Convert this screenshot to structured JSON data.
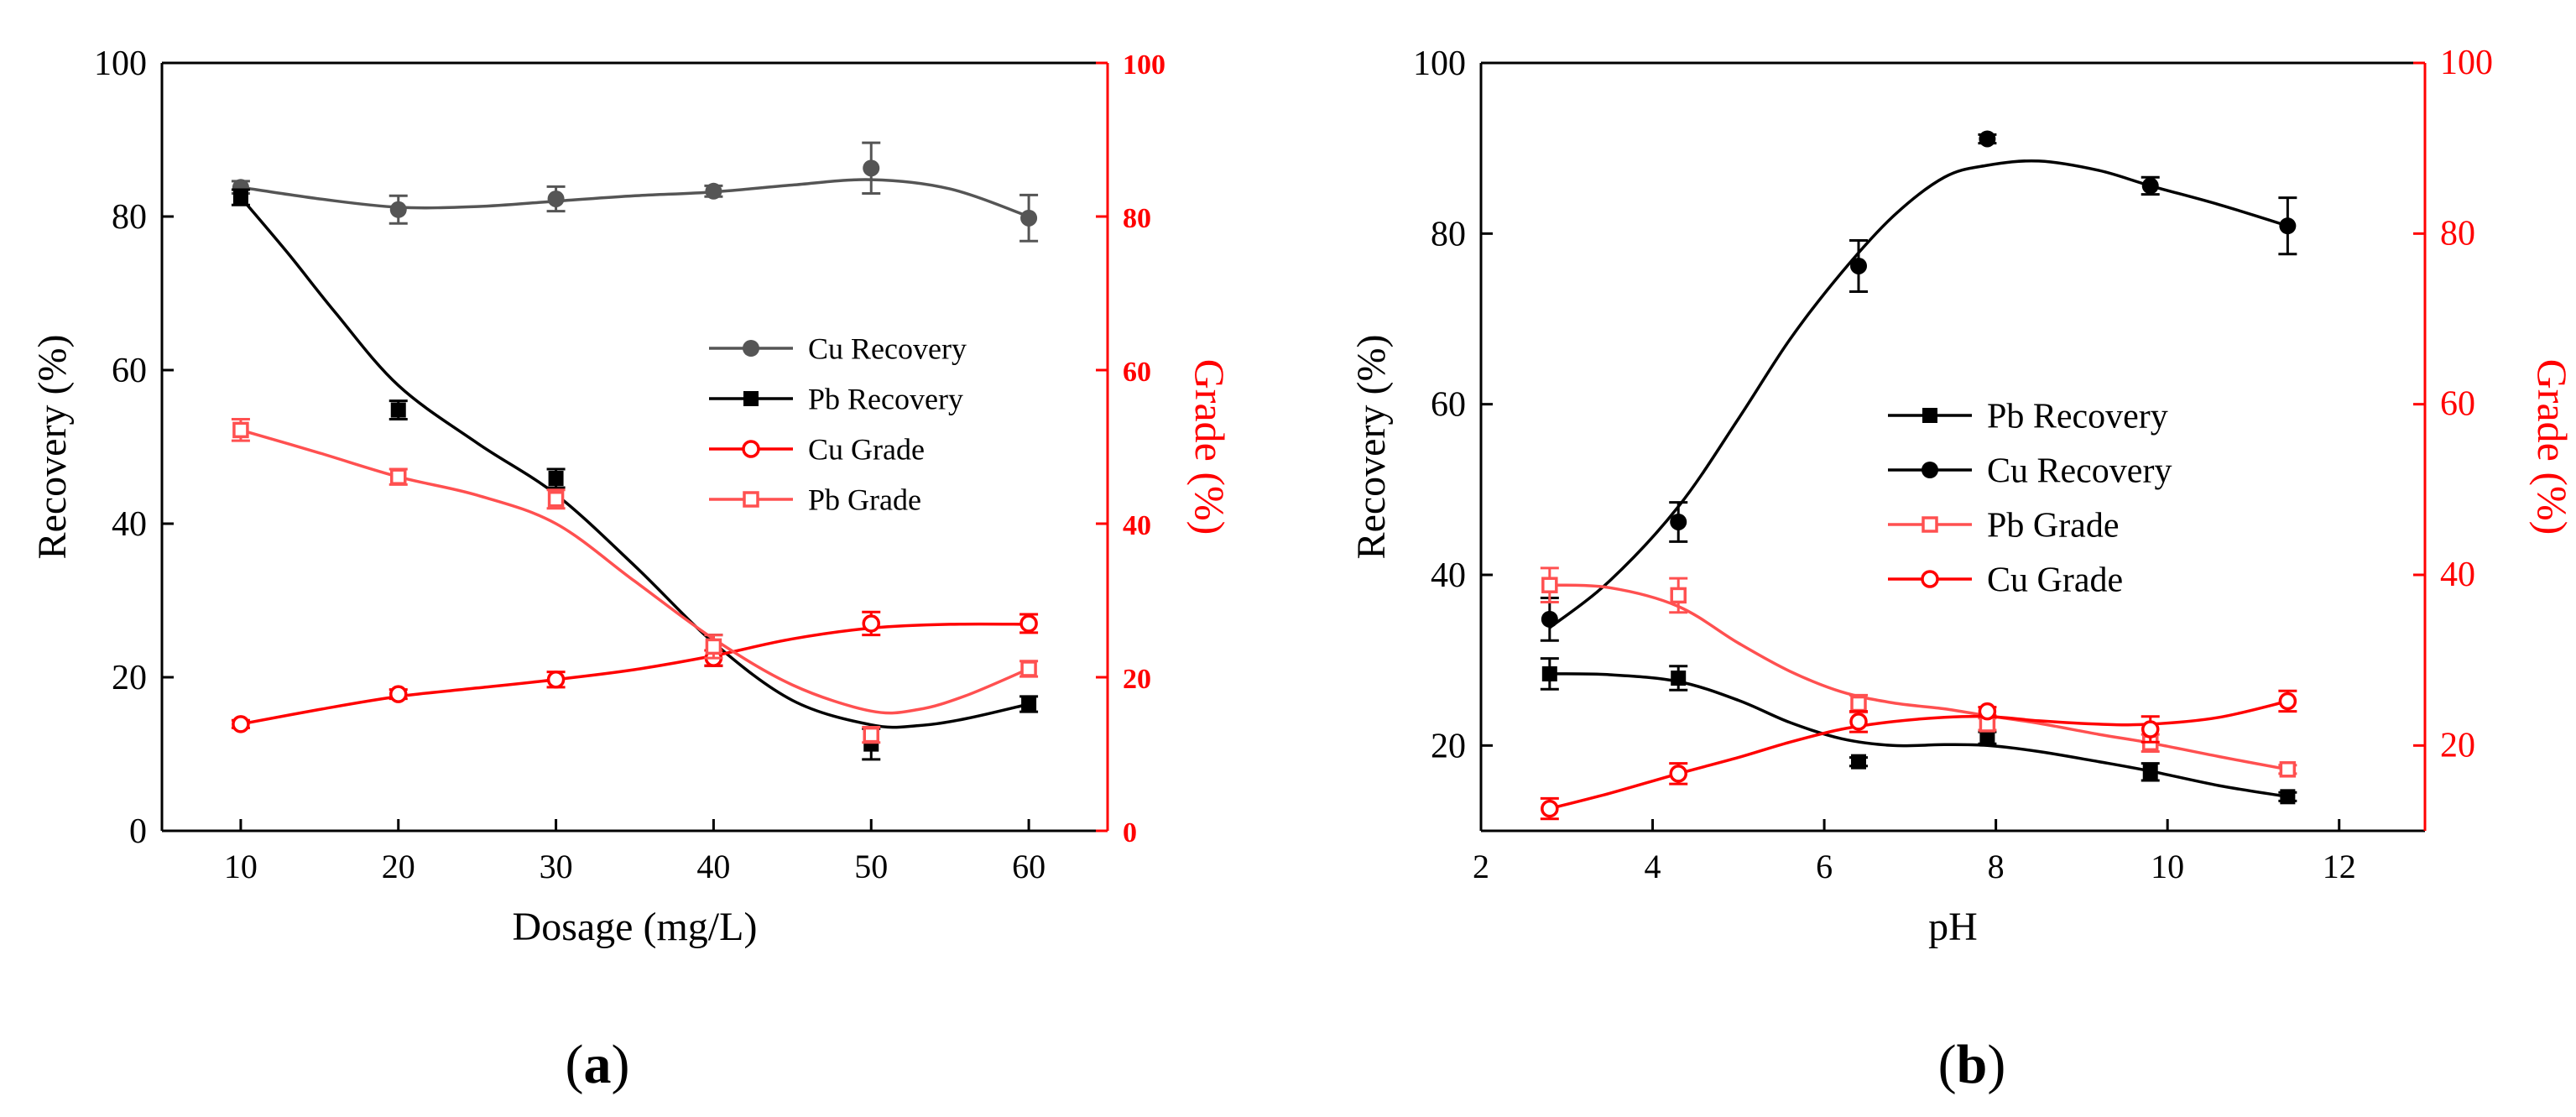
{
  "chart_data": [
    {
      "type": "line",
      "panel_label": "a",
      "xlabel": "Dosage (mg/L)",
      "ylabel": "Recovery (%)",
      "y2label": "Grade (%)",
      "xlim": [
        5,
        65
      ],
      "ylim": [
        0,
        100
      ],
      "y2lim": [
        0,
        100
      ],
      "xticks": [
        "10",
        "20",
        "30",
        "40",
        "50",
        "60"
      ],
      "yticks": [
        "0",
        "20",
        "40",
        "60",
        "80",
        "100"
      ],
      "y2ticks": [
        "0",
        "20",
        "40",
        "60",
        "80",
        "100"
      ],
      "grid": false,
      "legend_position": "center-right",
      "x": [
        10,
        20,
        30,
        40,
        50,
        60
      ],
      "series": [
        {
          "name": "Cu Recovery",
          "axis": "left",
          "marker": "circle-filled",
          "color": "#555555",
          "values": [
            83.8,
            80.9,
            82.3,
            83.3,
            86.3,
            79.8
          ],
          "err": [
            0.8,
            1.8,
            1.6,
            0.7,
            3.3,
            3.0
          ]
        },
        {
          "name": "Pb Recovery",
          "axis": "left",
          "marker": "square-filled",
          "color": "#000000",
          "values": [
            82.5,
            54.8,
            45.9,
            23.5,
            11.3,
            16.5
          ],
          "err": [
            1.0,
            1.2,
            1.2,
            2.0,
            2.0,
            1.0
          ]
        },
        {
          "name": "Cu Grade",
          "axis": "right",
          "marker": "circle-open",
          "color": "#ff0000",
          "values": [
            13.9,
            17.8,
            19.7,
            22.5,
            27.0,
            27.0
          ],
          "err": [
            0.5,
            0.6,
            1.0,
            1.0,
            1.5,
            1.2
          ]
        },
        {
          "name": "Pb Grade",
          "axis": "right",
          "marker": "square-open",
          "color": "#ff5050",
          "values": [
            52.2,
            46.1,
            43.2,
            24.0,
            12.5,
            21.1
          ],
          "err": [
            1.4,
            1.0,
            1.2,
            1.5,
            1.0,
            1.0
          ]
        }
      ],
      "fits": {
        "Cu Recovery": [
          [
            10,
            83.8
          ],
          [
            15,
            82.3
          ],
          [
            20,
            81.2
          ],
          [
            25,
            81.3
          ],
          [
            30,
            82.0
          ],
          [
            35,
            82.7
          ],
          [
            40,
            83.2
          ],
          [
            45,
            84.1
          ],
          [
            50,
            84.8
          ],
          [
            55,
            83.6
          ],
          [
            60,
            80.0
          ]
        ],
        "Pb Recovery": [
          [
            10,
            82.5
          ],
          [
            13,
            75.2
          ],
          [
            16,
            67.5
          ],
          [
            20,
            58.0
          ],
          [
            25,
            50.5
          ],
          [
            30,
            43.8
          ],
          [
            35,
            34.5
          ],
          [
            40,
            24.5
          ],
          [
            45,
            17.0
          ],
          [
            50,
            13.8
          ],
          [
            53,
            13.7
          ],
          [
            56,
            14.6
          ],
          [
            60,
            16.5
          ]
        ],
        "Cu Grade": [
          [
            10,
            13.9
          ],
          [
            15,
            15.8
          ],
          [
            20,
            17.5
          ],
          [
            25,
            18.6
          ],
          [
            30,
            19.7
          ],
          [
            35,
            21.0
          ],
          [
            40,
            22.8
          ],
          [
            45,
            25.0
          ],
          [
            50,
            26.4
          ],
          [
            55,
            26.9
          ],
          [
            60,
            26.9
          ]
        ],
        "Pb Grade": [
          [
            10,
            52.2
          ],
          [
            15,
            49.2
          ],
          [
            20,
            46.1
          ],
          [
            25,
            43.7
          ],
          [
            30,
            40.0
          ],
          [
            35,
            32.5
          ],
          [
            40,
            25.0
          ],
          [
            45,
            19.0
          ],
          [
            50,
            15.6
          ],
          [
            53,
            15.8
          ],
          [
            56,
            17.6
          ],
          [
            60,
            21.1
          ]
        ]
      }
    },
    {
      "type": "line",
      "panel_label": "b",
      "xlabel": "pH",
      "ylabel": "Recovery (%)",
      "y2label": "Grade (%)",
      "xlim": [
        2,
        13
      ],
      "ylim": [
        10,
        100
      ],
      "y2lim": [
        10,
        100
      ],
      "xticks": [
        "2",
        "4",
        "6",
        "8",
        "10",
        "12"
      ],
      "yticks": [
        "20",
        "40",
        "60",
        "80",
        "100"
      ],
      "y2ticks": [
        "20",
        "40",
        "60",
        "80",
        "100"
      ],
      "grid": false,
      "legend_position": "center-left",
      "series": [
        {
          "name": "Pb Recovery",
          "axis": "left",
          "marker": "square-filled",
          "color": "#000000",
          "x": [
            2.8,
            4.3,
            6.4,
            7.9,
            9.8,
            11.4
          ],
          "values": [
            28.4,
            27.9,
            18.1,
            20.9,
            16.9,
            14.0
          ],
          "err": [
            1.8,
            1.4,
            0.5,
            0.7,
            1.0,
            0.5
          ]
        },
        {
          "name": "Cu Recovery",
          "axis": "left",
          "marker": "circle-filled",
          "color": "#000000",
          "x": [
            2.8,
            4.3,
            6.4,
            7.9,
            9.8,
            11.4
          ],
          "values": [
            34.8,
            46.2,
            76.2,
            91.1,
            85.6,
            80.9
          ],
          "err": [
            2.5,
            2.3,
            3.0,
            0.5,
            1.0,
            3.3
          ]
        },
        {
          "name": "Pb Grade",
          "axis": "right",
          "marker": "square-open",
          "color": "#ff5050",
          "x": [
            2.8,
            4.3,
            6.4,
            7.9,
            9.8,
            11.4
          ],
          "values": [
            38.8,
            37.6,
            24.9,
            22.5,
            20.3,
            17.2
          ],
          "err": [
            2.0,
            2.0,
            1.0,
            0.7,
            1.0,
            0.5
          ]
        },
        {
          "name": "Cu Grade",
          "axis": "right",
          "marker": "circle-open",
          "color": "#ff0000",
          "x": [
            2.8,
            4.3,
            6.4,
            7.9,
            9.8,
            11.4
          ],
          "values": [
            12.6,
            16.7,
            22.8,
            24.0,
            21.9,
            25.2
          ],
          "err": [
            1.2,
            1.2,
            1.2,
            0.5,
            1.5,
            1.2
          ]
        }
      ],
      "fits": {
        "Pb Recovery": [
          [
            2.8,
            28.4
          ],
          [
            3.5,
            28.3
          ],
          [
            4.3,
            27.5
          ],
          [
            5.0,
            25.3
          ],
          [
            5.6,
            22.7
          ],
          [
            6.2,
            20.8
          ],
          [
            6.8,
            20.0
          ],
          [
            7.4,
            20.1
          ],
          [
            7.9,
            20.0
          ],
          [
            8.5,
            19.3
          ],
          [
            9.2,
            18.1
          ],
          [
            9.8,
            17.0
          ],
          [
            10.6,
            15.3
          ],
          [
            11.4,
            14.0
          ]
        ],
        "Cu Recovery": [
          [
            2.8,
            33.8
          ],
          [
            3.5,
            39.3
          ],
          [
            4.3,
            48.0
          ],
          [
            5.0,
            58.3
          ],
          [
            5.6,
            67.6
          ],
          [
            6.2,
            75.4
          ],
          [
            6.8,
            82.0
          ],
          [
            7.4,
            86.6
          ],
          [
            7.9,
            88.0
          ],
          [
            8.5,
            88.5
          ],
          [
            9.2,
            87.4
          ],
          [
            9.8,
            85.6
          ],
          [
            10.6,
            83.4
          ],
          [
            11.4,
            80.9
          ]
        ],
        "Pb Grade": [
          [
            2.8,
            38.8
          ],
          [
            3.5,
            38.5
          ],
          [
            4.3,
            36.3
          ],
          [
            5.0,
            32.0
          ],
          [
            5.6,
            28.7
          ],
          [
            6.2,
            26.3
          ],
          [
            6.8,
            25.0
          ],
          [
            7.4,
            24.3
          ],
          [
            7.9,
            23.5
          ],
          [
            8.5,
            22.6
          ],
          [
            9.2,
            21.3
          ],
          [
            9.8,
            20.3
          ],
          [
            10.6,
            18.7
          ],
          [
            11.4,
            17.2
          ]
        ],
        "Cu Grade": [
          [
            2.8,
            12.6
          ],
          [
            3.5,
            14.4
          ],
          [
            4.3,
            16.7
          ],
          [
            5.0,
            18.6
          ],
          [
            5.6,
            20.4
          ],
          [
            6.2,
            21.9
          ],
          [
            6.8,
            22.8
          ],
          [
            7.4,
            23.3
          ],
          [
            7.9,
            23.4
          ],
          [
            8.5,
            22.9
          ],
          [
            9.2,
            22.5
          ],
          [
            9.8,
            22.5
          ],
          [
            10.6,
            23.3
          ],
          [
            11.4,
            25.2
          ]
        ]
      }
    }
  ]
}
